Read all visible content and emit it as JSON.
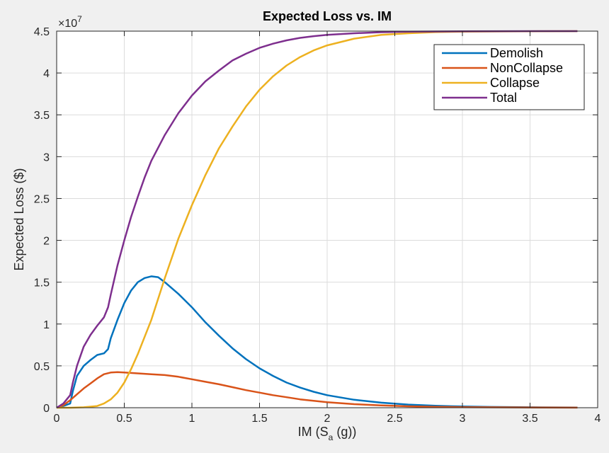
{
  "chart_data": {
    "type": "line",
    "title": "Expected Loss vs. IM",
    "xlabel_main": "IM (S",
    "xlabel_sub": "a",
    "xlabel_tail": " (g))",
    "ylabel": "Expected Loss ($)",
    "y_exponent_base": "×10",
    "y_exponent_power": "7",
    "xlim": [
      0,
      4
    ],
    "ylim": [
      0,
      4.5
    ],
    "x_ticks": [
      "0",
      "0.5",
      "1",
      "1.5",
      "2",
      "2.5",
      "3",
      "3.5",
      "4"
    ],
    "y_ticks": [
      "0",
      "0.5",
      "1",
      "1.5",
      "2",
      "2.5",
      "3",
      "3.5",
      "4",
      "4.5"
    ],
    "grid": true,
    "legend_position": "top-right",
    "series": [
      {
        "name": "Demolish",
        "color": "#0072bd",
        "points": [
          [
            0,
            0
          ],
          [
            0.05,
            0.02
          ],
          [
            0.1,
            0.05
          ],
          [
            0.12,
            0.2
          ],
          [
            0.15,
            0.38
          ],
          [
            0.2,
            0.5
          ],
          [
            0.25,
            0.57
          ],
          [
            0.3,
            0.63
          ],
          [
            0.35,
            0.65
          ],
          [
            0.38,
            0.7
          ],
          [
            0.4,
            0.83
          ],
          [
            0.45,
            1.05
          ],
          [
            0.5,
            1.25
          ],
          [
            0.55,
            1.4
          ],
          [
            0.6,
            1.5
          ],
          [
            0.65,
            1.55
          ],
          [
            0.7,
            1.57
          ],
          [
            0.75,
            1.56
          ],
          [
            0.8,
            1.5
          ],
          [
            0.9,
            1.36
          ],
          [
            1.0,
            1.2
          ],
          [
            1.1,
            1.02
          ],
          [
            1.2,
            0.86
          ],
          [
            1.3,
            0.71
          ],
          [
            1.4,
            0.58
          ],
          [
            1.5,
            0.47
          ],
          [
            1.6,
            0.38
          ],
          [
            1.7,
            0.3
          ],
          [
            1.8,
            0.24
          ],
          [
            1.9,
            0.19
          ],
          [
            2.0,
            0.15
          ],
          [
            2.2,
            0.095
          ],
          [
            2.4,
            0.06
          ],
          [
            2.6,
            0.037
          ],
          [
            2.8,
            0.023
          ],
          [
            3.0,
            0.014
          ],
          [
            3.2,
            0.009
          ],
          [
            3.5,
            0.005
          ],
          [
            3.85,
            0.002
          ]
        ]
      },
      {
        "name": "NonCollapse",
        "color": "#d95319",
        "points": [
          [
            0,
            0
          ],
          [
            0.05,
            0.03
          ],
          [
            0.1,
            0.09
          ],
          [
            0.15,
            0.16
          ],
          [
            0.2,
            0.23
          ],
          [
            0.25,
            0.29
          ],
          [
            0.3,
            0.35
          ],
          [
            0.35,
            0.4
          ],
          [
            0.4,
            0.42
          ],
          [
            0.45,
            0.425
          ],
          [
            0.5,
            0.42
          ],
          [
            0.6,
            0.41
          ],
          [
            0.7,
            0.4
          ],
          [
            0.8,
            0.39
          ],
          [
            0.9,
            0.37
          ],
          [
            1.0,
            0.34
          ],
          [
            1.1,
            0.31
          ],
          [
            1.2,
            0.28
          ],
          [
            1.3,
            0.245
          ],
          [
            1.4,
            0.21
          ],
          [
            1.5,
            0.18
          ],
          [
            1.6,
            0.15
          ],
          [
            1.7,
            0.125
          ],
          [
            1.8,
            0.1
          ],
          [
            1.9,
            0.082
          ],
          [
            2.0,
            0.066
          ],
          [
            2.2,
            0.042
          ],
          [
            2.4,
            0.027
          ],
          [
            2.6,
            0.017
          ],
          [
            2.8,
            0.011
          ],
          [
            3.0,
            0.007
          ],
          [
            3.3,
            0.004
          ],
          [
            3.6,
            0.002
          ],
          [
            3.85,
            0.001
          ]
        ]
      },
      {
        "name": "Collapse",
        "color": "#edb120",
        "points": [
          [
            0,
            0
          ],
          [
            0.1,
            0.0
          ],
          [
            0.2,
            0.005
          ],
          [
            0.3,
            0.02
          ],
          [
            0.35,
            0.05
          ],
          [
            0.4,
            0.1
          ],
          [
            0.45,
            0.18
          ],
          [
            0.5,
            0.3
          ],
          [
            0.55,
            0.46
          ],
          [
            0.6,
            0.64
          ],
          [
            0.7,
            1.05
          ],
          [
            0.8,
            1.55
          ],
          [
            0.9,
            2.02
          ],
          [
            1.0,
            2.42
          ],
          [
            1.1,
            2.78
          ],
          [
            1.2,
            3.1
          ],
          [
            1.3,
            3.36
          ],
          [
            1.4,
            3.6
          ],
          [
            1.5,
            3.8
          ],
          [
            1.6,
            3.96
          ],
          [
            1.7,
            4.09
          ],
          [
            1.8,
            4.19
          ],
          [
            1.9,
            4.27
          ],
          [
            2.0,
            4.33
          ],
          [
            2.2,
            4.41
          ],
          [
            2.4,
            4.455
          ],
          [
            2.6,
            4.475
          ],
          [
            2.8,
            4.488
          ],
          [
            3.0,
            4.494
          ],
          [
            3.3,
            4.497
          ],
          [
            3.6,
            4.499
          ],
          [
            3.85,
            4.5
          ]
        ]
      },
      {
        "name": "Total",
        "color": "#7e2f8e",
        "points": [
          [
            0,
            0
          ],
          [
            0.05,
            0.05
          ],
          [
            0.1,
            0.15
          ],
          [
            0.12,
            0.3
          ],
          [
            0.15,
            0.5
          ],
          [
            0.2,
            0.73
          ],
          [
            0.25,
            0.87
          ],
          [
            0.3,
            0.98
          ],
          [
            0.35,
            1.08
          ],
          [
            0.38,
            1.2
          ],
          [
            0.4,
            1.35
          ],
          [
            0.45,
            1.7
          ],
          [
            0.5,
            2.0
          ],
          [
            0.55,
            2.28
          ],
          [
            0.6,
            2.52
          ],
          [
            0.65,
            2.75
          ],
          [
            0.7,
            2.95
          ],
          [
            0.8,
            3.26
          ],
          [
            0.9,
            3.52
          ],
          [
            1.0,
            3.73
          ],
          [
            1.1,
            3.9
          ],
          [
            1.2,
            4.03
          ],
          [
            1.3,
            4.15
          ],
          [
            1.4,
            4.23
          ],
          [
            1.5,
            4.3
          ],
          [
            1.6,
            4.35
          ],
          [
            1.7,
            4.39
          ],
          [
            1.8,
            4.42
          ],
          [
            1.9,
            4.44
          ],
          [
            2.0,
            4.455
          ],
          [
            2.2,
            4.475
          ],
          [
            2.4,
            4.487
          ],
          [
            2.6,
            4.493
          ],
          [
            2.8,
            4.496
          ],
          [
            3.0,
            4.498
          ],
          [
            3.3,
            4.499
          ],
          [
            3.6,
            4.5
          ],
          [
            3.85,
            4.5
          ]
        ]
      }
    ]
  }
}
